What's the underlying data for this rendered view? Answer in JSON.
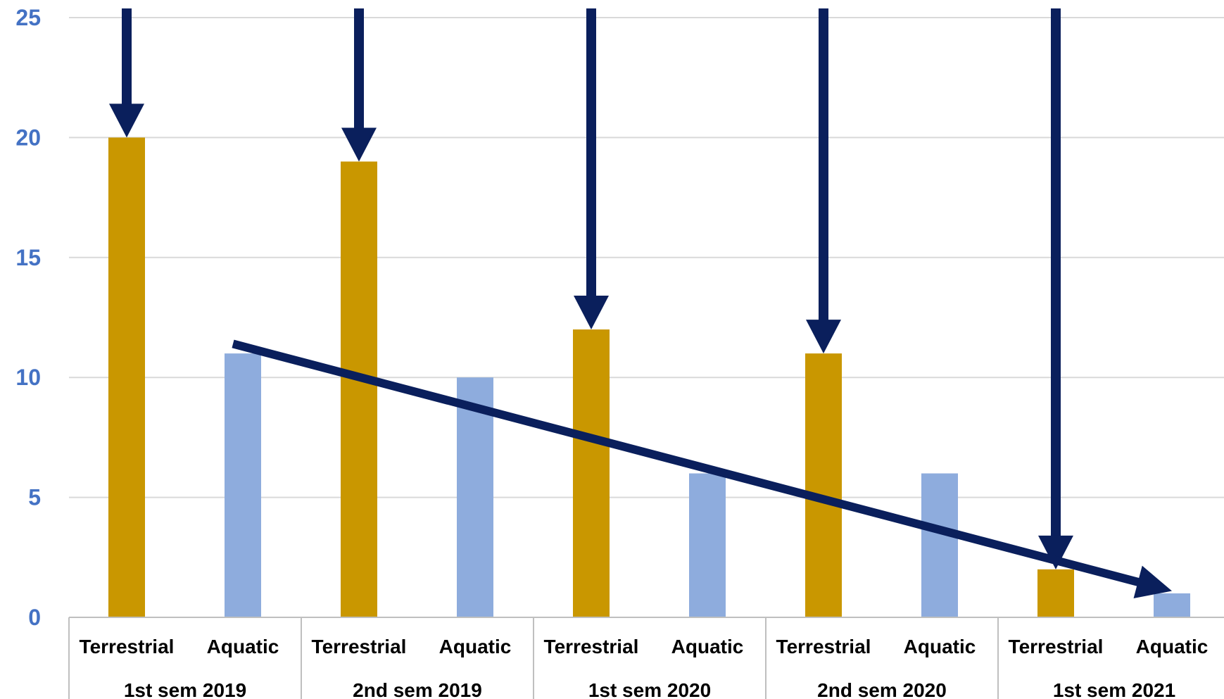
{
  "chart_data": {
    "type": "bar",
    "groups": [
      "1st sem 2019",
      "2nd sem 2019",
      "1st sem 2020",
      "2nd sem 2020",
      "1st sem 2021"
    ],
    "subcategories": [
      "Terrestrial",
      "Aquatic"
    ],
    "series": [
      {
        "values": [
          20,
          19,
          12,
          11,
          2
        ],
        "color": "#C99700"
      },
      {
        "values": [
          11,
          10,
          6,
          6,
          1
        ],
        "color": "#8EACDD"
      }
    ],
    "ylim": [
      0,
      25
    ],
    "yticks": [
      "0",
      "5",
      "10",
      "15",
      "20",
      "25"
    ],
    "grid": true,
    "legend": "none",
    "annotations": {
      "arrow_color": "#0A1F5C",
      "down_arrows_to": "Terrestrial bars",
      "trend_arrow": {
        "from_value": 11.4,
        "to_value": 1.1
      }
    },
    "colors": {
      "tick_label": "#4472C4",
      "grid": "#D9D9D9",
      "axis": "#BFBFBF"
    }
  }
}
